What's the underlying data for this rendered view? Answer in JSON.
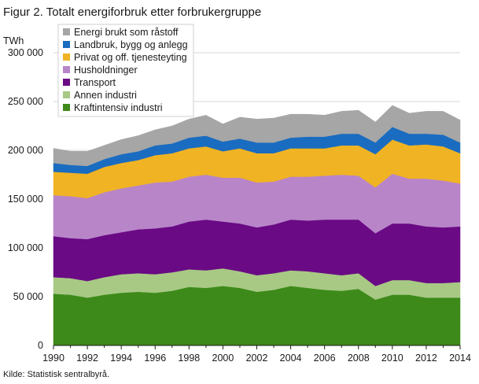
{
  "title": "Figur 2. Totalt energiforbruk etter forbrukergruppe",
  "source": "Kilde: Statistisk sentralbyrå.",
  "chart_data": {
    "type": "area",
    "stacked": true,
    "title": "Figur 2. Totalt energiforbruk etter forbrukergruppe",
    "ylabel": "TWh",
    "xlabel": "",
    "ylim": [
      0,
      300000
    ],
    "yticks": [
      0,
      50000,
      100000,
      150000,
      200000,
      250000,
      300000
    ],
    "ytick_labels": [
      "0",
      "50 000",
      "100 000",
      "150 000",
      "200 000",
      "250 000",
      "300 000"
    ],
    "xticks": [
      1990,
      1992,
      1994,
      1996,
      1998,
      2000,
      2002,
      2004,
      2006,
      2008,
      2010,
      2012,
      2014
    ],
    "xtick_labels": [
      "1990",
      "1992",
      "1994",
      "1996",
      "1998",
      "2000",
      "2002",
      "2004",
      "2006",
      "2008",
      "2010",
      "2012",
      "2014"
    ],
    "xlim": [
      1990,
      2014
    ],
    "grid": true,
    "legend_position": "top-left",
    "x": [
      1990,
      1991,
      1992,
      1993,
      1994,
      1995,
      1996,
      1997,
      1998,
      1999,
      2000,
      2001,
      2002,
      2003,
      2004,
      2005,
      2006,
      2007,
      2008,
      2009,
      2010,
      2011,
      2012,
      2013,
      2014
    ],
    "series": [
      {
        "name": "Kraftintensiv industri",
        "color": "#3d8a1a",
        "values": [
          53000,
          52000,
          49000,
          52000,
          54000,
          55000,
          54000,
          56000,
          60000,
          59000,
          61000,
          59000,
          55000,
          57000,
          61000,
          59000,
          57000,
          56000,
          58000,
          47000,
          52000,
          52000,
          49000,
          49000,
          49000
        ]
      },
      {
        "name": "Annen industri",
        "color": "#a7c984",
        "values": [
          17000,
          17000,
          17000,
          18000,
          19000,
          19000,
          19000,
          19000,
          18000,
          18000,
          18000,
          17000,
          17000,
          17000,
          16000,
          17000,
          17000,
          16000,
          16000,
          14000,
          15000,
          15000,
          15000,
          15000,
          16000
        ]
      },
      {
        "name": "Transport",
        "color": "#6a0a84",
        "values": [
          42000,
          41000,
          43000,
          43000,
          43000,
          45000,
          47000,
          47000,
          49000,
          52000,
          48000,
          49000,
          49000,
          50000,
          52000,
          52000,
          55000,
          57000,
          55000,
          54000,
          58000,
          58000,
          58000,
          57000,
          57000
        ]
      },
      {
        "name": "Husholdninger",
        "color": "#b885c9",
        "values": [
          42000,
          43000,
          42000,
          44000,
          45000,
          45000,
          47000,
          46000,
          46000,
          46000,
          45000,
          47000,
          46000,
          44000,
          44000,
          45000,
          45000,
          46000,
          45000,
          47000,
          51000,
          46000,
          49000,
          48000,
          44000
        ]
      },
      {
        "name": "Privat og off. tjenesteyting",
        "color": "#f0b323",
        "values": [
          24000,
          24000,
          25000,
          26000,
          26000,
          26000,
          28000,
          29000,
          29000,
          29000,
          27000,
          30000,
          30000,
          29000,
          29000,
          29000,
          28000,
          30000,
          31000,
          34000,
          35000,
          34000,
          35000,
          35000,
          31000
        ]
      },
      {
        "name": "Landbruk, bygg og anlegg",
        "color": "#1a6cc0",
        "values": [
          9000,
          8000,
          8000,
          8000,
          9000,
          9000,
          10000,
          10000,
          11000,
          11000,
          10000,
          10000,
          11000,
          11000,
          11000,
          12000,
          12000,
          12000,
          12000,
          12000,
          13000,
          12000,
          11000,
          12000,
          11000
        ]
      },
      {
        "name": "Energi brukt som råstoff",
        "color": "#a6a6a6",
        "values": [
          15000,
          14000,
          15000,
          14000,
          15000,
          16000,
          16000,
          18000,
          19000,
          21000,
          18000,
          22000,
          24000,
          25000,
          24000,
          23000,
          22000,
          23000,
          24000,
          21000,
          22000,
          21000,
          23000,
          24000,
          23000
        ]
      }
    ],
    "legend_entries": [
      "Energi brukt som råstoff",
      "Landbruk, bygg og anlegg",
      "Privat og off. tjenesteyting",
      "Husholdninger",
      "Transport",
      "Annen industri",
      "Kraftintensiv industri"
    ]
  }
}
